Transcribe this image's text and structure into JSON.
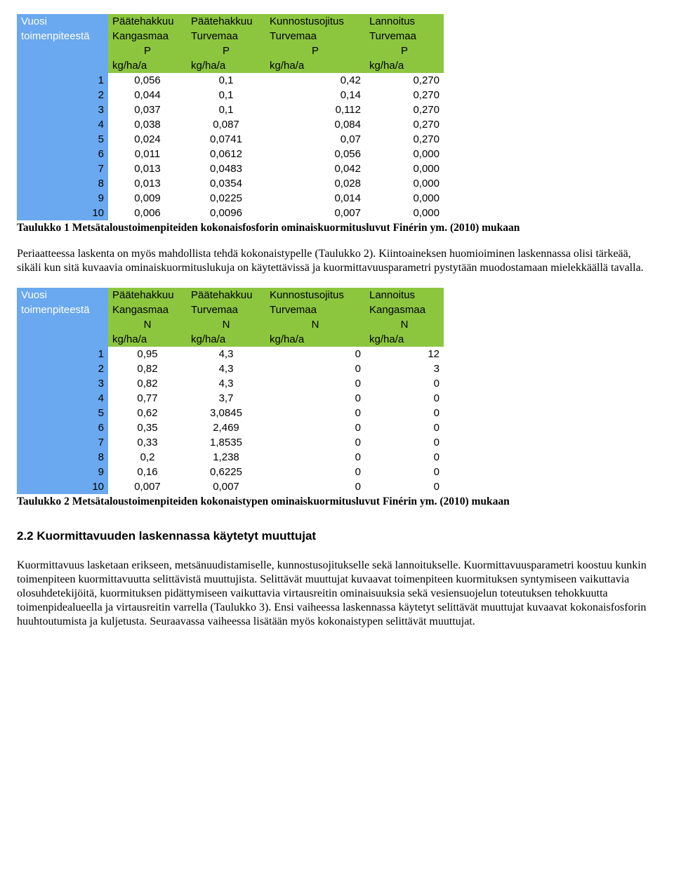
{
  "table1": {
    "col_widths": [
      "130px",
      "112px",
      "112px",
      "142px",
      "112px"
    ],
    "header_colors": {
      "col0_bg": "#6aa8ef",
      "col0_fg": "#ffffff",
      "rest_bg": "#8cc63f",
      "rest_fg": "#000000"
    },
    "row0": [
      "Vuosi",
      "Päätehakkuu",
      "Päätehakkuu",
      "Kunnostusojitus",
      "Lannoitus"
    ],
    "row1": [
      "toimenpiteestä",
      "Kangasmaa",
      "Turvemaa",
      "Turvemaa",
      "Turvemaa"
    ],
    "row2": [
      "",
      "P",
      "P",
      "P",
      "P"
    ],
    "row3": [
      "",
      "kg/ha/a",
      "kg/ha/a",
      "kg/ha/a",
      "kg/ha/a"
    ],
    "rows": [
      [
        "1",
        "0,056",
        "0,1",
        "0,42",
        "0,270"
      ],
      [
        "2",
        "0,044",
        "0,1",
        "0,14",
        "0,270"
      ],
      [
        "3",
        "0,037",
        "0,1",
        "0,112",
        "0,270"
      ],
      [
        "4",
        "0,038",
        "0,087",
        "0,084",
        "0,270"
      ],
      [
        "5",
        "0,024",
        "0,0741",
        "0,07",
        "0,270"
      ],
      [
        "6",
        "0,011",
        "0,0612",
        "0,056",
        "0,000"
      ],
      [
        "7",
        "0,013",
        "0,0483",
        "0,042",
        "0,000"
      ],
      [
        "8",
        "0,013",
        "0,0354",
        "0,028",
        "0,000"
      ],
      [
        "9",
        "0,009",
        "0,0225",
        "0,014",
        "0,000"
      ],
      [
        "10",
        "0,006",
        "0,0096",
        "0,007",
        "0,000"
      ]
    ],
    "caption": "Taulukko 1 Metsätaloustoimenpiteiden kokonaisfosforin ominaiskuormitusluvut Finérin ym. (2010) mukaan"
  },
  "paragraph1": "Periaatteessa laskenta on myös mahdollista tehdä kokonaistypelle (Taulukko 2). Kiintoaineksen huomioiminen laskennassa olisi tärkeää, sikäli kun sitä kuvaavia ominaiskuormituslukuja on käytettävissä ja kuormittavuusparametri pystytään muodostamaan mielekkäällä tavalla.",
  "table2": {
    "col_widths": [
      "130px",
      "112px",
      "112px",
      "142px",
      "112px"
    ],
    "row0": [
      "Vuosi",
      "Päätehakkuu",
      "Päätehakkuu",
      "Kunnostusojitus",
      "Lannoitus"
    ],
    "row1": [
      "toimenpiteestä",
      "Kangasmaa",
      "Turvemaa",
      "Turvemaa",
      "Kangasmaa"
    ],
    "row2": [
      "",
      "N",
      "N",
      "N",
      "N"
    ],
    "row3": [
      "",
      "kg/ha/a",
      "kg/ha/a",
      "kg/ha/a",
      "kg/ha/a"
    ],
    "rows": [
      [
        "1",
        "0,95",
        "4,3",
        "0",
        "12"
      ],
      [
        "2",
        "0,82",
        "4,3",
        "0",
        "3"
      ],
      [
        "3",
        "0,82",
        "4,3",
        "0",
        "0"
      ],
      [
        "4",
        "0,77",
        "3,7",
        "0",
        "0"
      ],
      [
        "5",
        "0,62",
        "3,0845",
        "0",
        "0"
      ],
      [
        "6",
        "0,35",
        "2,469",
        "0",
        "0"
      ],
      [
        "7",
        "0,33",
        "1,8535",
        "0",
        "0"
      ],
      [
        "8",
        "0,2",
        "1,238",
        "0",
        "0"
      ],
      [
        "9",
        "0,16",
        "0,6225",
        "0",
        "0"
      ],
      [
        "10",
        "0,007",
        "0,007",
        "0",
        "0"
      ]
    ],
    "caption": "Taulukko 2 Metsätaloustoimenpiteiden kokonaistypen ominaiskuormitusluvut Finérin ym. (2010) mukaan"
  },
  "heading2": "2.2 Kuormittavuuden laskennassa käytetyt muuttujat",
  "paragraph2": "Kuormittavuus lasketaan erikseen, metsänuudistamiselle, kunnostusojitukselle sekä lannoitukselle. Kuormittavuusparametri koostuu kunkin toimenpiteen kuormittavuutta selittävistä muuttujista. Selittävät muuttujat kuvaavat toimenpiteen kuormituksen syntymiseen vaikuttavia olosuhdetekijöitä, kuormituksen pidättymiseen vaikuttavia virtausreitin ominaisuuksia sekä vesiensuojelun toteutuksen tehokkuutta toimenpidealueella ja virtausreitin varrella (Taulukko 3). Ensi vaiheessa laskennassa käytetyt selittävät muuttujat kuvaavat kokonaisfosforin huuhtoutumista ja kuljetusta. Seuraavassa vaiheessa lisätään myös kokonaistypen selittävät muuttujat."
}
